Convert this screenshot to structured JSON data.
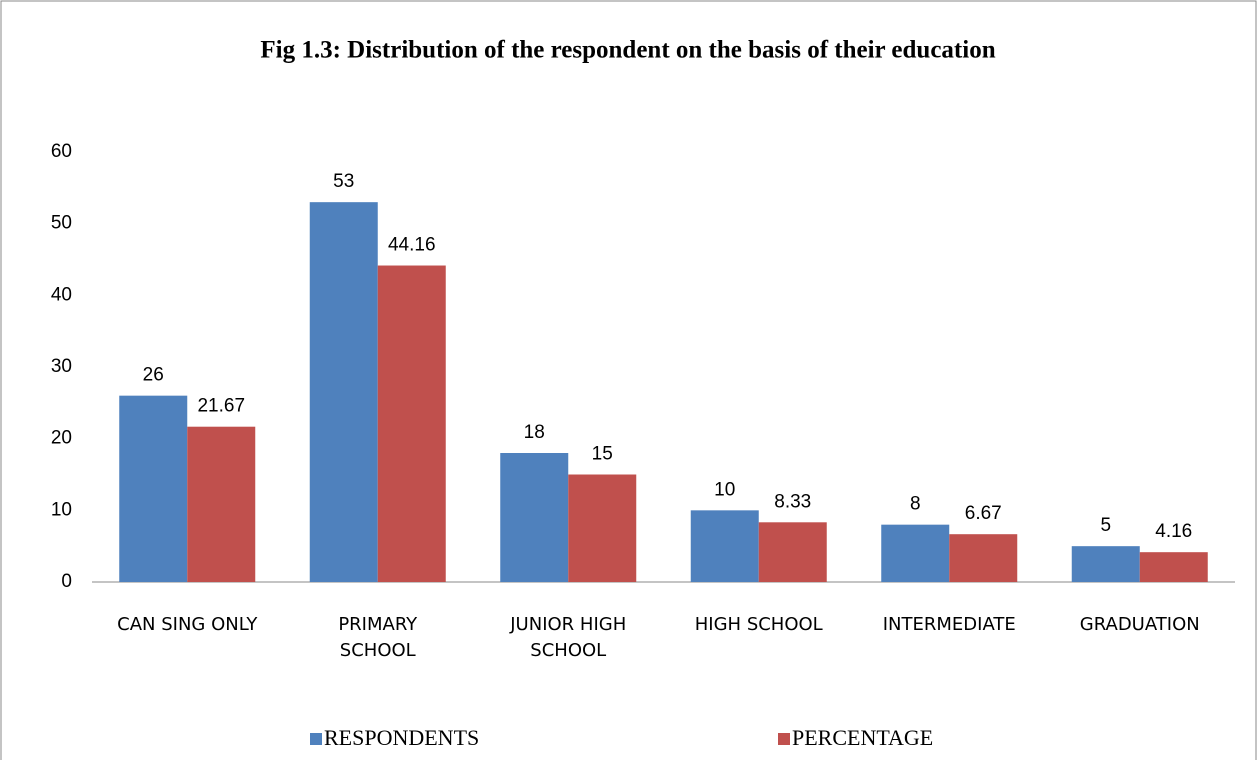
{
  "chart_data": {
    "type": "bar",
    "title": "Fig 1.3:  Distribution of the respondent on the basis of their education",
    "categories": [
      "CAN SING ONLY",
      "PRIMARY\nSCHOOL",
      "JUNIOR HIGH\nSCHOOL",
      "HIGH SCHOOL",
      "INTERMEDIATE",
      "GRADUATION"
    ],
    "series": [
      {
        "name": "RESPONDENTS",
        "color": "#4f81bd",
        "values": [
          26,
          53,
          18,
          10,
          8,
          5
        ]
      },
      {
        "name": "PERCENTAGE",
        "color": "#c0504d",
        "values": [
          21.67,
          44.16,
          15,
          8.33,
          6.67,
          4.16
        ]
      }
    ],
    "ylim": [
      0,
      60
    ],
    "yticks": [
      0,
      10,
      20,
      30,
      40,
      50,
      60
    ],
    "grid": false,
    "legend": "bottom"
  }
}
